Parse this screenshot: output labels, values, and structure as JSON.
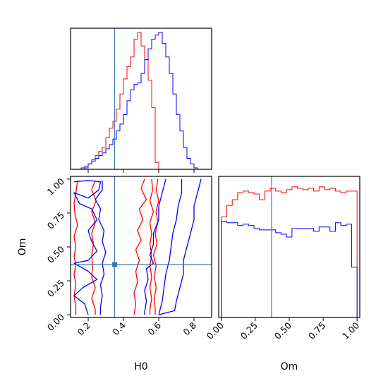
{
  "chart_data": {
    "type": "corner",
    "parameters": [
      "H0",
      "Om"
    ],
    "truth": {
      "H0": 0.35,
      "Om": 0.37,
      "color": "#3a78b0"
    },
    "colors": {
      "red": "#ff0000",
      "blue": "#0000ff",
      "truth": "#3a78b0"
    },
    "axes": {
      "H0": {
        "range": [
          0.1,
          0.9
        ],
        "ticks": [
          0.2,
          0.4,
          0.6,
          0.8
        ],
        "tick_labels": [
          "0.2",
          "0.4",
          "0.6",
          "0.8"
        ],
        "xlabel": "H0"
      },
      "Om": {
        "range": [
          -0.02,
          1.02
        ],
        "ticks": [
          0.0,
          0.25,
          0.5,
          0.75,
          1.0
        ],
        "tick_labels": [
          "0.00",
          "0.25",
          "0.50",
          "0.75",
          "1.00"
        ],
        "xlabel": "Om",
        "ylabel": "Om"
      }
    },
    "hist_H0": {
      "bin_edges": [
        0.1,
        0.12,
        0.14,
        0.16,
        0.18,
        0.2,
        0.22,
        0.24,
        0.26,
        0.28,
        0.3,
        0.32,
        0.34,
        0.36,
        0.38,
        0.4,
        0.42,
        0.44,
        0.46,
        0.48,
        0.5,
        0.52,
        0.54,
        0.56,
        0.58,
        0.6,
        0.62,
        0.64,
        0.66,
        0.68,
        0.7,
        0.72,
        0.74,
        0.76,
        0.78,
        0.8,
        0.82,
        0.84,
        0.86,
        0.88,
        0.9
      ],
      "red": [
        0,
        0,
        0,
        0,
        0.01,
        0.04,
        0.07,
        0.1,
        0.13,
        0.16,
        0.23,
        0.3,
        0.35,
        0.44,
        0.55,
        0.66,
        0.75,
        0.82,
        0.95,
        1.0,
        0.9,
        0.8,
        0.65,
        0.45,
        0.05,
        0,
        0,
        0,
        0,
        0,
        0,
        0,
        0,
        0,
        0,
        0,
        0,
        0,
        0,
        0
      ],
      "blue": [
        0,
        0,
        0,
        0.01,
        0.02,
        0.04,
        0.06,
        0.08,
        0.1,
        0.12,
        0.15,
        0.18,
        0.22,
        0.28,
        0.33,
        0.4,
        0.5,
        0.58,
        0.62,
        0.63,
        0.7,
        0.8,
        0.88,
        0.95,
        0.98,
        1.0,
        0.92,
        0.82,
        0.7,
        0.55,
        0.4,
        0.28,
        0.16,
        0.08,
        0.04,
        0.01,
        0,
        0,
        0,
        0
      ]
    },
    "hist_Om": {
      "bin_edges": [
        0.0,
        0.04,
        0.08,
        0.12,
        0.16,
        0.2,
        0.24,
        0.28,
        0.32,
        0.36,
        0.4,
        0.44,
        0.48,
        0.52,
        0.56,
        0.6,
        0.64,
        0.68,
        0.72,
        0.76,
        0.8,
        0.84,
        0.88,
        0.92,
        0.96,
        1.0
      ],
      "red": [
        0.7,
        0.78,
        0.82,
        0.87,
        0.88,
        0.87,
        0.86,
        0.82,
        0.88,
        0.9,
        0.88,
        0.87,
        0.89,
        0.91,
        0.9,
        0.89,
        0.9,
        0.88,
        0.91,
        0.89,
        0.9,
        0.88,
        0.87,
        0.88,
        0.88
      ],
      "blue": [
        0.67,
        0.66,
        0.66,
        0.64,
        0.65,
        0.64,
        0.62,
        0.61,
        0.61,
        0.61,
        0.59,
        0.58,
        0.56,
        0.62,
        0.62,
        0.62,
        0.62,
        0.6,
        0.63,
        0.63,
        0.6,
        0.66,
        0.64,
        0.65,
        0.35
      ]
    },
    "contours_2d": {
      "red": [
        [
          [
            0.14,
            0.99
          ],
          [
            0.13,
            0.9
          ],
          [
            0.12,
            0.82
          ],
          [
            0.125,
            0.74
          ],
          [
            0.14,
            0.66
          ],
          [
            0.12,
            0.58
          ],
          [
            0.13,
            0.5
          ],
          [
            0.12,
            0.43
          ],
          [
            0.13,
            0.37
          ],
          [
            0.12,
            0.3
          ],
          [
            0.13,
            0.22
          ],
          [
            0.12,
            0.14
          ],
          [
            0.13,
            0.06
          ],
          [
            0.13,
            0.0
          ]
        ],
        [
          [
            0.24,
            0.99
          ],
          [
            0.22,
            0.92
          ],
          [
            0.245,
            0.84
          ],
          [
            0.22,
            0.76
          ],
          [
            0.24,
            0.68
          ],
          [
            0.22,
            0.6
          ],
          [
            0.23,
            0.52
          ],
          [
            0.22,
            0.44
          ],
          [
            0.225,
            0.36
          ],
          [
            0.22,
            0.28
          ],
          [
            0.24,
            0.2
          ],
          [
            0.22,
            0.12
          ],
          [
            0.24,
            0.04
          ],
          [
            0.24,
            0.0
          ]
        ],
        [
          [
            0.52,
            1.0
          ],
          [
            0.5,
            0.93
          ],
          [
            0.53,
            0.85
          ],
          [
            0.49,
            0.78
          ],
          [
            0.51,
            0.7
          ],
          [
            0.48,
            0.62
          ],
          [
            0.5,
            0.55
          ],
          [
            0.47,
            0.48
          ],
          [
            0.49,
            0.4
          ],
          [
            0.47,
            0.32
          ],
          [
            0.48,
            0.24
          ],
          [
            0.46,
            0.16
          ],
          [
            0.47,
            0.08
          ],
          [
            0.46,
            0.0
          ]
        ],
        [
          [
            0.56,
            1.0
          ],
          [
            0.565,
            0.92
          ],
          [
            0.55,
            0.84
          ],
          [
            0.57,
            0.76
          ],
          [
            0.55,
            0.68
          ],
          [
            0.56,
            0.6
          ],
          [
            0.55,
            0.52
          ],
          [
            0.56,
            0.44
          ],
          [
            0.55,
            0.36
          ],
          [
            0.56,
            0.28
          ],
          [
            0.55,
            0.2
          ],
          [
            0.56,
            0.12
          ],
          [
            0.55,
            0.04
          ],
          [
            0.55,
            0.0
          ]
        ],
        [
          [
            0.595,
            1.0
          ],
          [
            0.585,
            0.92
          ],
          [
            0.6,
            0.84
          ],
          [
            0.585,
            0.76
          ],
          [
            0.595,
            0.68
          ],
          [
            0.58,
            0.6
          ],
          [
            0.59,
            0.52
          ],
          [
            0.57,
            0.44
          ],
          [
            0.585,
            0.36
          ],
          [
            0.575,
            0.28
          ],
          [
            0.585,
            0.2
          ],
          [
            0.575,
            0.12
          ],
          [
            0.58,
            0.04
          ],
          [
            0.58,
            0.0
          ]
        ]
      ],
      "blue": [
        [
          [
            0.12,
            0.98
          ],
          [
            0.2,
            0.99
          ],
          [
            0.27,
            0.98
          ],
          [
            0.26,
            0.92
          ],
          [
            0.2,
            0.86
          ],
          [
            0.12,
            0.9
          ],
          [
            0.15,
            0.82
          ],
          [
            0.22,
            0.78
          ],
          [
            0.25,
            0.7
          ],
          [
            0.2,
            0.62
          ],
          [
            0.22,
            0.54
          ],
          [
            0.25,
            0.47
          ],
          [
            0.2,
            0.4
          ],
          [
            0.12,
            0.38
          ],
          [
            0.2,
            0.32
          ],
          [
            0.25,
            0.26
          ],
          [
            0.17,
            0.2
          ],
          [
            0.12,
            0.14
          ],
          [
            0.18,
            0.08
          ],
          [
            0.2,
            0.0
          ]
        ],
        [
          [
            0.28,
            0.99
          ],
          [
            0.28,
            0.92
          ],
          [
            0.24,
            0.85
          ],
          [
            0.27,
            0.78
          ],
          [
            0.26,
            0.7
          ],
          [
            0.29,
            0.62
          ],
          [
            0.28,
            0.54
          ],
          [
            0.3,
            0.46
          ],
          [
            0.28,
            0.38
          ],
          [
            0.29,
            0.3
          ],
          [
            0.27,
            0.22
          ],
          [
            0.28,
            0.14
          ],
          [
            0.27,
            0.06
          ],
          [
            0.27,
            0.0
          ]
        ],
        [
          [
            0.64,
            1.0
          ],
          [
            0.62,
            0.9
          ],
          [
            0.6,
            0.8
          ],
          [
            0.6,
            0.7
          ],
          [
            0.57,
            0.6
          ],
          [
            0.57,
            0.52
          ],
          [
            0.55,
            0.44
          ],
          [
            0.57,
            0.38
          ],
          [
            0.53,
            0.34
          ],
          [
            0.54,
            0.26
          ],
          [
            0.52,
            0.18
          ],
          [
            0.53,
            0.1
          ],
          [
            0.52,
            0.02
          ],
          [
            0.52,
            0.0
          ]
        ],
        [
          [
            0.73,
            1.0
          ],
          [
            0.73,
            0.9
          ],
          [
            0.71,
            0.8
          ],
          [
            0.7,
            0.7
          ],
          [
            0.68,
            0.6
          ],
          [
            0.67,
            0.5
          ],
          [
            0.66,
            0.4
          ],
          [
            0.64,
            0.3
          ],
          [
            0.63,
            0.2
          ],
          [
            0.62,
            0.1
          ],
          [
            0.6,
            0.0
          ]
        ],
        [
          [
            0.84,
            1.0
          ],
          [
            0.82,
            0.9
          ],
          [
            0.8,
            0.8
          ],
          [
            0.8,
            0.7
          ],
          [
            0.78,
            0.6
          ],
          [
            0.76,
            0.5
          ],
          [
            0.74,
            0.4
          ],
          [
            0.74,
            0.3
          ],
          [
            0.72,
            0.2
          ],
          [
            0.7,
            0.1
          ],
          [
            0.69,
            0.03
          ],
          [
            0.66,
            0.02
          ],
          [
            0.6,
            0.0
          ]
        ]
      ]
    }
  }
}
